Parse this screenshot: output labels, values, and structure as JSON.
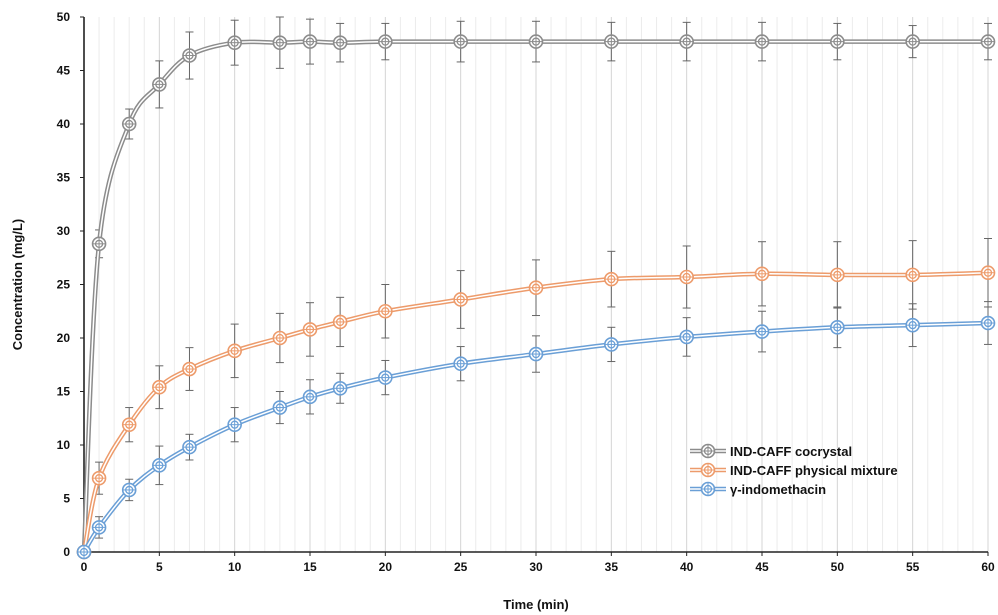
{
  "chart_data": {
    "type": "line",
    "xlabel": "Time (min)",
    "ylabel": "Concentration (mg/L)",
    "xlim": [
      0,
      60
    ],
    "ylim": [
      0,
      50
    ],
    "xticks": [
      "0",
      "5",
      "10",
      "15",
      "20",
      "25",
      "30",
      "35",
      "40",
      "45",
      "50",
      "55",
      "60"
    ],
    "yticks": [
      "0",
      "5",
      "10",
      "15",
      "20",
      "25",
      "30",
      "35",
      "40",
      "45",
      "50"
    ],
    "grid": "vertical minor every 1 min, major every 5",
    "legend_position": "bottom-right",
    "x": [
      0,
      1,
      3,
      5,
      7,
      10,
      13,
      15,
      17,
      20,
      25,
      30,
      35,
      40,
      45,
      50,
      55,
      60
    ],
    "series": [
      {
        "name": "IND-CAFF cocrystal",
        "color": "#8c8c8c",
        "values": [
          0,
          28.8,
          40.0,
          43.7,
          46.4,
          47.6,
          47.6,
          47.7,
          47.6,
          47.7,
          47.7,
          47.7,
          47.7,
          47.7,
          47.7,
          47.7,
          47.7,
          47.7
        ],
        "errors": [
          0,
          1.3,
          1.4,
          2.2,
          2.2,
          2.1,
          2.4,
          2.1,
          1.8,
          1.7,
          1.9,
          1.9,
          1.8,
          1.8,
          1.8,
          1.7,
          1.5,
          1.7
        ]
      },
      {
        "name": "IND-CAFF physical mixture",
        "color": "#ed9b6b",
        "values": [
          0,
          6.9,
          11.9,
          15.4,
          17.1,
          18.8,
          20.0,
          20.8,
          21.5,
          22.5,
          23.6,
          24.7,
          25.5,
          25.7,
          26.0,
          25.9,
          25.9,
          26.1
        ],
        "errors": [
          0,
          1.5,
          1.6,
          2.0,
          2.0,
          2.5,
          2.3,
          2.5,
          2.3,
          2.5,
          2.7,
          2.6,
          2.6,
          2.9,
          3.0,
          3.1,
          3.2,
          3.2
        ]
      },
      {
        "name": "γ-indomethacin",
        "color": "#6a9fd6",
        "values": [
          0,
          2.3,
          5.8,
          8.1,
          9.8,
          11.9,
          13.5,
          14.5,
          15.3,
          16.3,
          17.6,
          18.5,
          19.4,
          20.1,
          20.6,
          21.0,
          21.2,
          21.4
        ],
        "errors": [
          0,
          1.0,
          1.0,
          1.8,
          1.2,
          1.6,
          1.5,
          1.6,
          1.4,
          1.6,
          1.6,
          1.7,
          1.6,
          1.8,
          1.9,
          1.9,
          2.0,
          2.0
        ]
      }
    ]
  }
}
